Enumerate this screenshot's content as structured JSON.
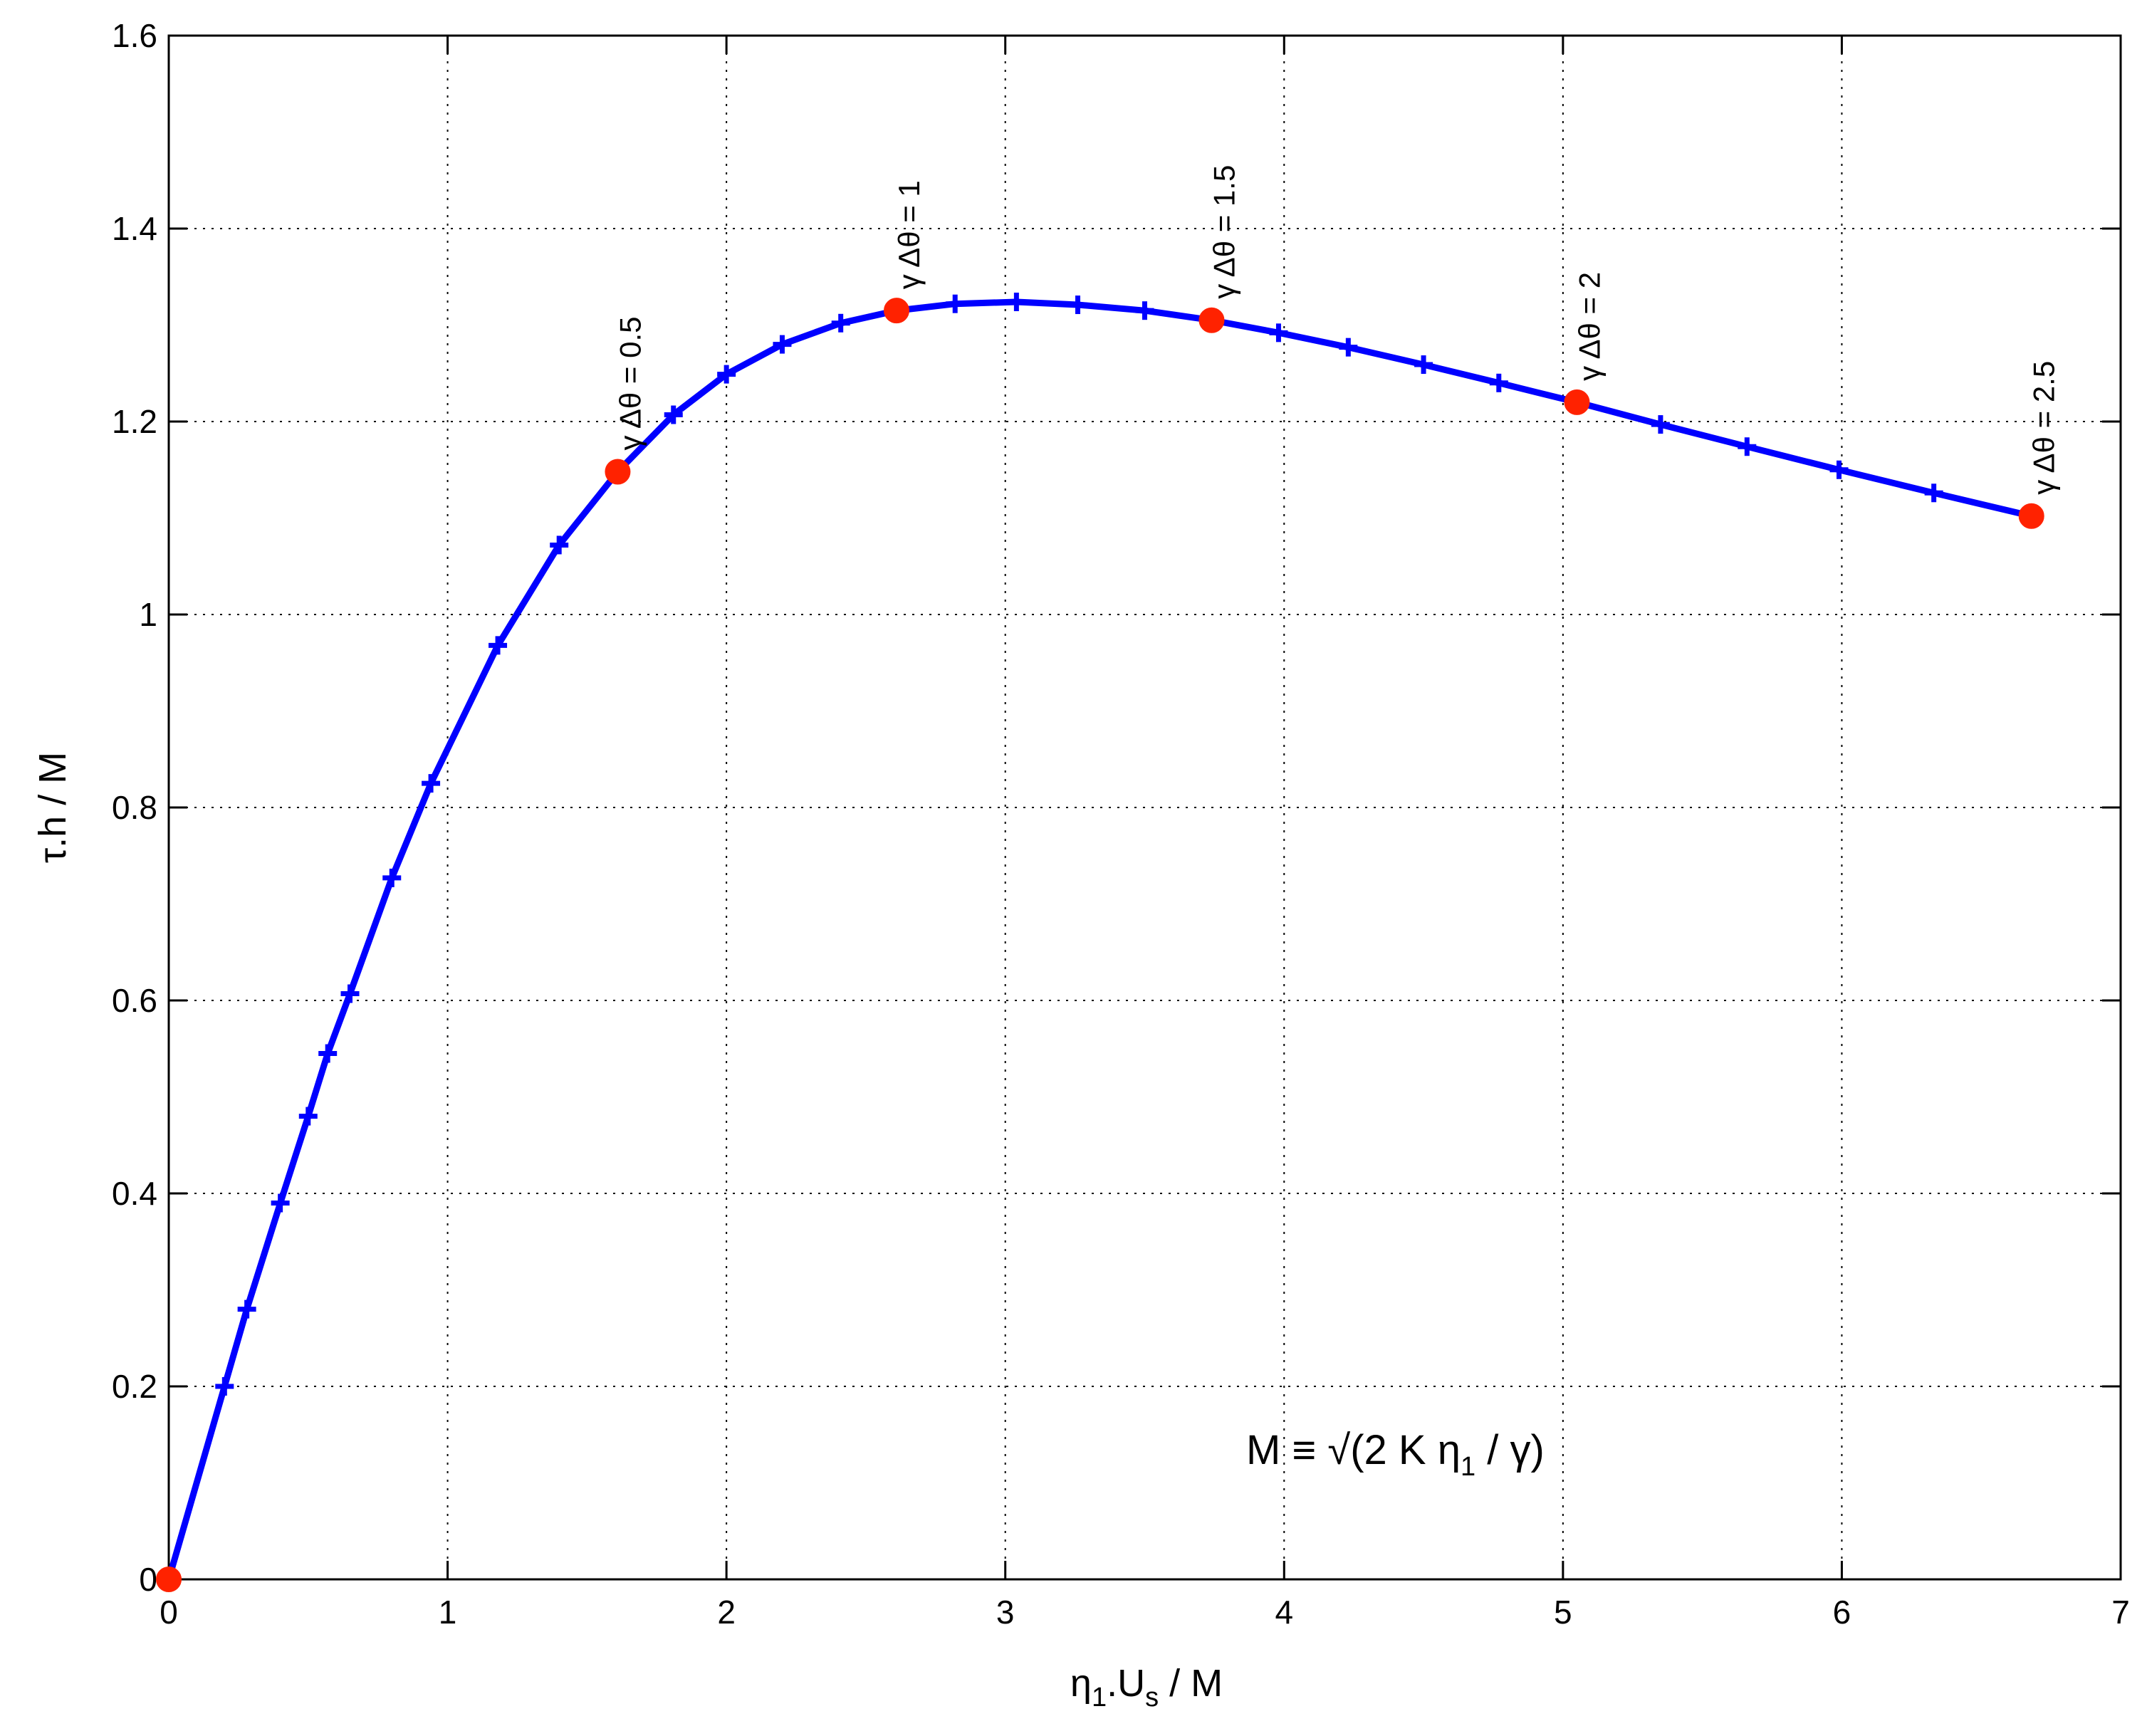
{
  "chart_data": {
    "type": "line",
    "xlabel": "η1.Us / M",
    "ylabel": "τ.h / M",
    "xlim": [
      0,
      7
    ],
    "ylim": [
      0,
      1.6
    ],
    "xticks": [
      "0",
      "1",
      "2",
      "3",
      "4",
      "5",
      "6",
      "7"
    ],
    "yticks": [
      "0",
      "0.2",
      "0.4",
      "0.6",
      "0.8",
      "1",
      "1.2",
      "1.4",
      "1.6"
    ],
    "grid": true,
    "line_color": "#0000ff",
    "marker_color": "#ff2200",
    "series": [
      {
        "x": [
          0,
          0.2,
          0.28,
          0.4,
          0.5,
          0.57,
          0.65,
          0.8,
          0.94,
          1.18,
          1.4,
          1.61,
          1.81,
          2.0,
          2.2,
          2.41,
          2.61,
          2.82,
          3.04,
          3.26,
          3.5,
          3.74,
          3.98,
          4.23,
          4.5,
          4.77,
          5.05,
          5.35,
          5.66,
          5.99,
          6.33,
          6.68
        ],
        "y": [
          0,
          0.2,
          0.28,
          0.39,
          0.48,
          0.545,
          0.607,
          0.727,
          0.825,
          0.968,
          1.072,
          1.148,
          1.207,
          1.249,
          1.28,
          1.302,
          1.315,
          1.322,
          1.324,
          1.321,
          1.315,
          1.305,
          1.292,
          1.277,
          1.259,
          1.24,
          1.22,
          1.197,
          1.174,
          1.15,
          1.126,
          1.102
        ]
      }
    ],
    "highlighted_points": [
      {
        "x": 0,
        "y": 0,
        "label": ""
      },
      {
        "x": 1.61,
        "y": 1.148,
        "label": "γ Δθ = 0.5"
      },
      {
        "x": 2.61,
        "y": 1.315,
        "label": "γ Δθ = 1"
      },
      {
        "x": 3.74,
        "y": 1.305,
        "label": "γ Δθ = 1.5"
      },
      {
        "x": 5.05,
        "y": 1.22,
        "label": "γ Δθ = 2"
      },
      {
        "x": 6.68,
        "y": 1.102,
        "label": "γ Δθ = 2.5"
      }
    ],
    "annotation": "M ≡ √(2 K η1 / γ)"
  }
}
